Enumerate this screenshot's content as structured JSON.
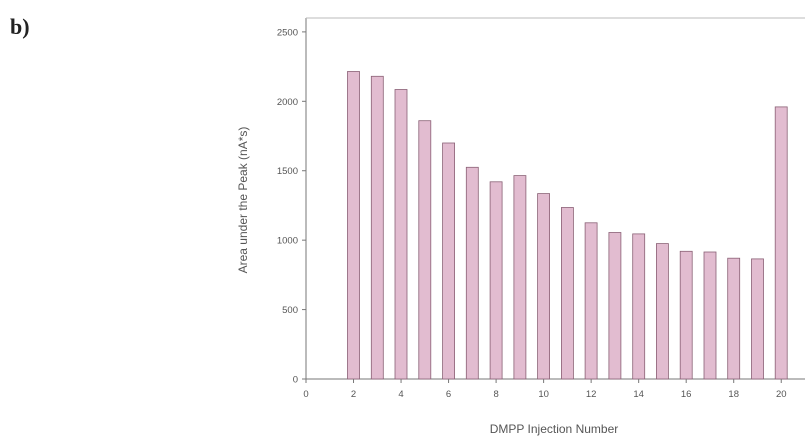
{
  "panel_label": "b)",
  "chart_data": {
    "type": "bar",
    "title": "",
    "xlabel": "DMPP Injection Number",
    "ylabel": "Area under the Peak (nA*s)",
    "x": [
      2,
      3,
      4,
      5,
      6,
      7,
      8,
      9,
      10,
      11,
      12,
      13,
      14,
      15,
      16,
      17,
      18,
      19,
      20
    ],
    "values": [
      2215,
      2180,
      2085,
      1860,
      1700,
      1525,
      1420,
      1465,
      1335,
      1235,
      1125,
      1055,
      1045,
      975,
      920,
      915,
      870,
      865,
      1960
    ],
    "xlim": [
      0,
      21
    ],
    "ylim": [
      0,
      2600
    ],
    "xticks": [
      0,
      2,
      4,
      6,
      8,
      10,
      12,
      14,
      16,
      18,
      20
    ],
    "yticks": [
      0,
      500,
      1000,
      1500,
      2000,
      2500
    ],
    "grid": false,
    "bar_color": "#e2bcd0",
    "bar_edge_color": "#8a6075"
  }
}
